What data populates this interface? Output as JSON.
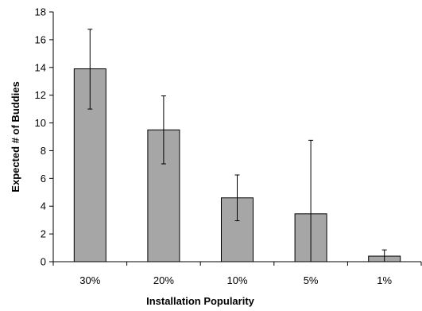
{
  "chart_data": {
    "type": "bar",
    "categories": [
      "30%",
      "20%",
      "10%",
      "5%",
      "1%"
    ],
    "values": [
      13.9,
      9.5,
      4.6,
      3.45,
      0.4
    ],
    "error_bars": [
      {
        "low": 11.0,
        "high": 16.75
      },
      {
        "low": 7.05,
        "high": 11.95
      },
      {
        "low": 2.95,
        "high": 6.25
      },
      {
        "low": 0.0,
        "high": 8.75
      },
      {
        "low": 0.0,
        "high": 0.85
      }
    ],
    "xlabel": "Installation Popularity",
    "ylabel": "Expected # of Buddies",
    "ylim": [
      0,
      18
    ],
    "yticks": [
      0,
      2,
      4,
      6,
      8,
      10,
      12,
      14,
      16,
      18
    ],
    "grid": false,
    "legend": "none",
    "bar_color": "#a6a6a6"
  }
}
